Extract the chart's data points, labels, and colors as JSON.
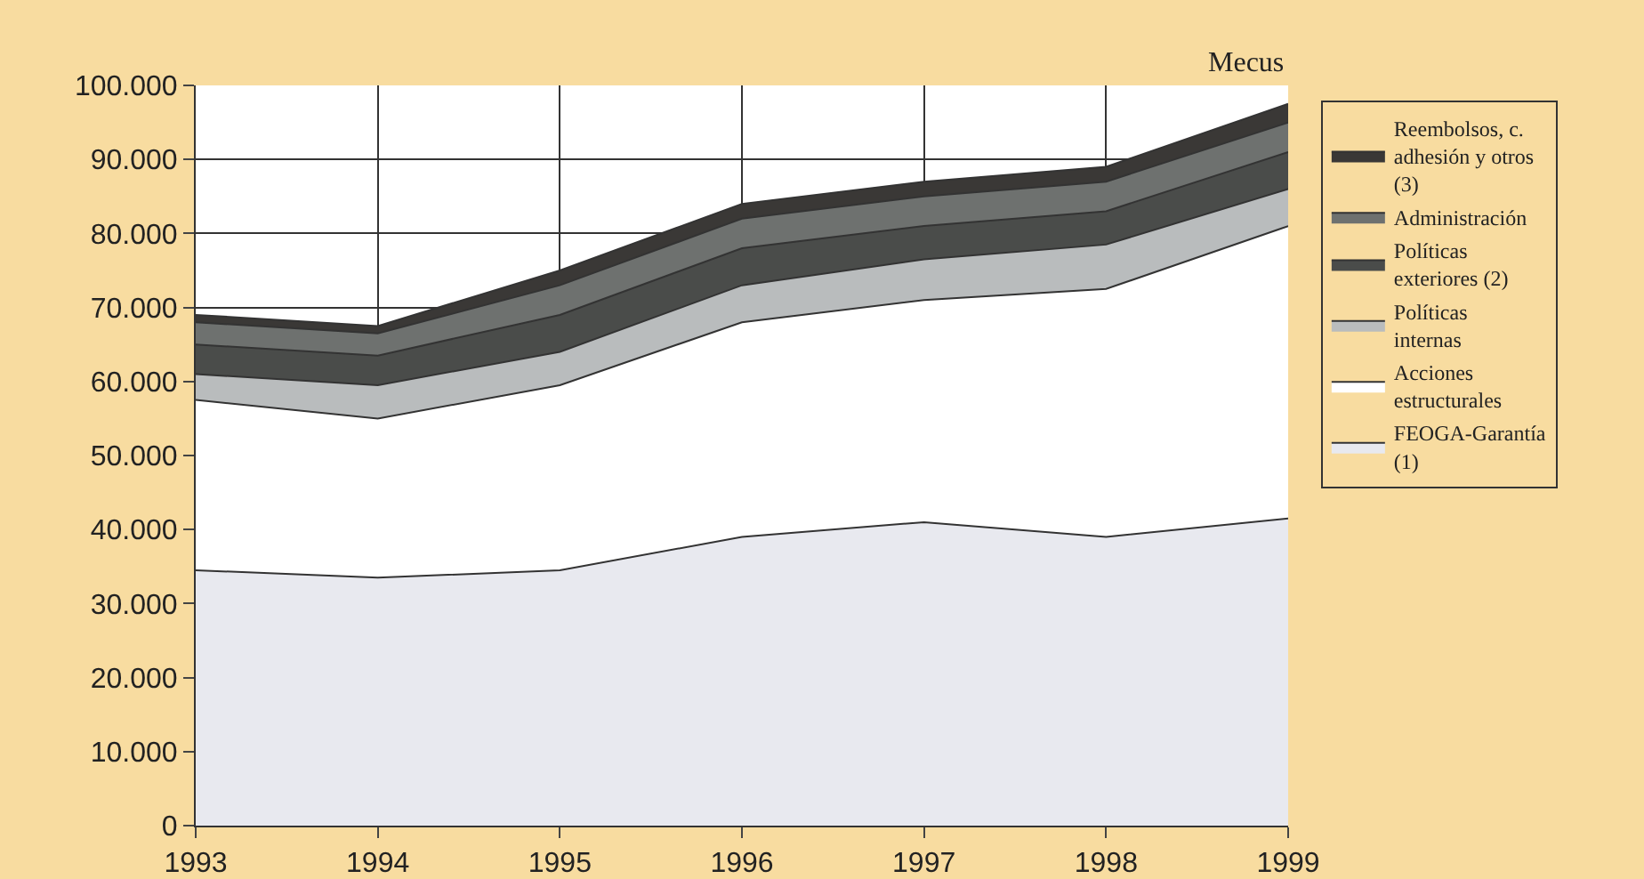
{
  "chart_data": {
    "type": "area",
    "stacked": true,
    "ylabel": "Mecus",
    "x": [
      1993,
      1994,
      1995,
      1996,
      1997,
      1998,
      1999
    ],
    "xlim": [
      1993,
      1999
    ],
    "xticks": [
      1993,
      1994,
      1995,
      1996,
      1997,
      1998,
      1999
    ],
    "ylim": [
      0,
      100000
    ],
    "yticks": [
      0,
      {
        "value": 10000,
        "label": "10.000"
      },
      {
        "value": 20000,
        "label": "20.000"
      },
      {
        "value": 30000,
        "label": "30.000"
      },
      {
        "value": 40000,
        "label": "40.000"
      },
      {
        "value": 50000,
        "label": "50.000"
      },
      {
        "value": 60000,
        "label": "60.000"
      },
      {
        "value": 70000,
        "label": "70.000"
      },
      {
        "value": 80000,
        "label": "80.000"
      },
      {
        "value": 90000,
        "label": "90.000"
      },
      {
        "value": 100000,
        "label": "100.000"
      }
    ],
    "grid": true,
    "legend": "right",
    "series": [
      {
        "name": "FEOGA-Garantía (1)",
        "color": "#e8e9ef",
        "values": [
          34500,
          33500,
          34500,
          39000,
          41000,
          39000,
          41500
        ]
      },
      {
        "name": "Acciones estructurales",
        "color": "#ffffff",
        "values": [
          23000,
          21500,
          25000,
          29000,
          30000,
          33500,
          39500
        ]
      },
      {
        "name": "Políticas internas",
        "color": "#b9bcbd",
        "values": [
          3500,
          4500,
          4500,
          5000,
          5500,
          6000,
          5000
        ]
      },
      {
        "name": "Políticas exteriores (2)",
        "color": "#4a4c4a",
        "values": [
          4000,
          4000,
          5000,
          5000,
          4500,
          4500,
          5000
        ]
      },
      {
        "name": "Administración",
        "color": "#6e716f",
        "values": [
          3000,
          3000,
          4000,
          4000,
          4000,
          4000,
          4000
        ]
      },
      {
        "name": "Reembolsos, c. adhesión y otros (3)",
        "color": "#3a3836",
        "values": [
          1000,
          1000,
          2000,
          2000,
          2000,
          2000,
          2500
        ]
      }
    ]
  }
}
